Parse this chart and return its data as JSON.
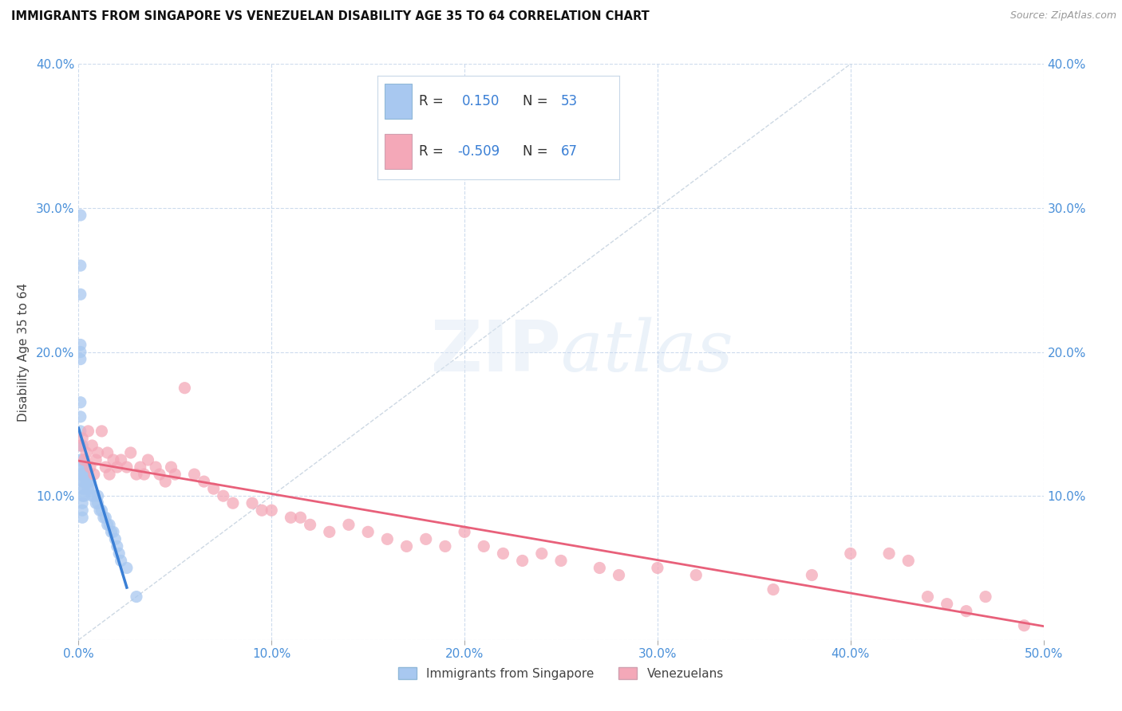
{
  "title": "IMMIGRANTS FROM SINGAPORE VS VENEZUELAN DISABILITY AGE 35 TO 64 CORRELATION CHART",
  "source": "Source: ZipAtlas.com",
  "ylabel": "Disability Age 35 to 64",
  "xlim": [
    0.0,
    0.5
  ],
  "ylim": [
    0.0,
    0.4
  ],
  "xticks": [
    0.0,
    0.1,
    0.2,
    0.3,
    0.4,
    0.5
  ],
  "yticks": [
    0.0,
    0.1,
    0.2,
    0.3,
    0.4
  ],
  "label1": "Immigrants from Singapore",
  "label2": "Venezuelans",
  "color1": "#a8c8f0",
  "color2": "#f4a8b8",
  "trend_color1": "#3a7fd5",
  "trend_color2": "#e8607a",
  "diag_color": "#b0bcd0",
  "sg_x": [
    0.001,
    0.001,
    0.001,
    0.001,
    0.001,
    0.001,
    0.001,
    0.001,
    0.001,
    0.001,
    0.001,
    0.001,
    0.002,
    0.002,
    0.002,
    0.002,
    0.002,
    0.002,
    0.002,
    0.002,
    0.002,
    0.002,
    0.003,
    0.003,
    0.003,
    0.003,
    0.003,
    0.004,
    0.004,
    0.004,
    0.005,
    0.005,
    0.006,
    0.006,
    0.007,
    0.008,
    0.009,
    0.01,
    0.01,
    0.011,
    0.012,
    0.013,
    0.014,
    0.015,
    0.016,
    0.017,
    0.018,
    0.019,
    0.02,
    0.021,
    0.022,
    0.025,
    0.03
  ],
  "sg_y": [
    0.295,
    0.26,
    0.24,
    0.205,
    0.2,
    0.195,
    0.165,
    0.155,
    0.145,
    0.135,
    0.125,
    0.115,
    0.135,
    0.125,
    0.12,
    0.115,
    0.11,
    0.105,
    0.1,
    0.095,
    0.09,
    0.085,
    0.12,
    0.115,
    0.11,
    0.105,
    0.1,
    0.12,
    0.115,
    0.11,
    0.11,
    0.105,
    0.11,
    0.105,
    0.1,
    0.1,
    0.095,
    0.1,
    0.095,
    0.09,
    0.09,
    0.085,
    0.085,
    0.08,
    0.08,
    0.075,
    0.075,
    0.07,
    0.065,
    0.06,
    0.055,
    0.05,
    0.03
  ],
  "ven_x": [
    0.001,
    0.002,
    0.003,
    0.004,
    0.005,
    0.006,
    0.007,
    0.008,
    0.009,
    0.01,
    0.012,
    0.014,
    0.015,
    0.016,
    0.018,
    0.02,
    0.022,
    0.025,
    0.027,
    0.03,
    0.032,
    0.034,
    0.036,
    0.04,
    0.042,
    0.045,
    0.048,
    0.05,
    0.055,
    0.06,
    0.065,
    0.07,
    0.075,
    0.08,
    0.09,
    0.095,
    0.1,
    0.11,
    0.115,
    0.12,
    0.13,
    0.14,
    0.15,
    0.16,
    0.17,
    0.18,
    0.19,
    0.2,
    0.21,
    0.22,
    0.23,
    0.24,
    0.25,
    0.27,
    0.28,
    0.3,
    0.32,
    0.36,
    0.38,
    0.4,
    0.42,
    0.43,
    0.44,
    0.45,
    0.46,
    0.47,
    0.49
  ],
  "ven_y": [
    0.135,
    0.14,
    0.125,
    0.13,
    0.145,
    0.12,
    0.135,
    0.115,
    0.125,
    0.13,
    0.145,
    0.12,
    0.13,
    0.115,
    0.125,
    0.12,
    0.125,
    0.12,
    0.13,
    0.115,
    0.12,
    0.115,
    0.125,
    0.12,
    0.115,
    0.11,
    0.12,
    0.115,
    0.175,
    0.115,
    0.11,
    0.105,
    0.1,
    0.095,
    0.095,
    0.09,
    0.09,
    0.085,
    0.085,
    0.08,
    0.075,
    0.08,
    0.075,
    0.07,
    0.065,
    0.07,
    0.065,
    0.075,
    0.065,
    0.06,
    0.055,
    0.06,
    0.055,
    0.05,
    0.045,
    0.05,
    0.045,
    0.035,
    0.045,
    0.06,
    0.06,
    0.055,
    0.03,
    0.025,
    0.02,
    0.03,
    0.01
  ]
}
